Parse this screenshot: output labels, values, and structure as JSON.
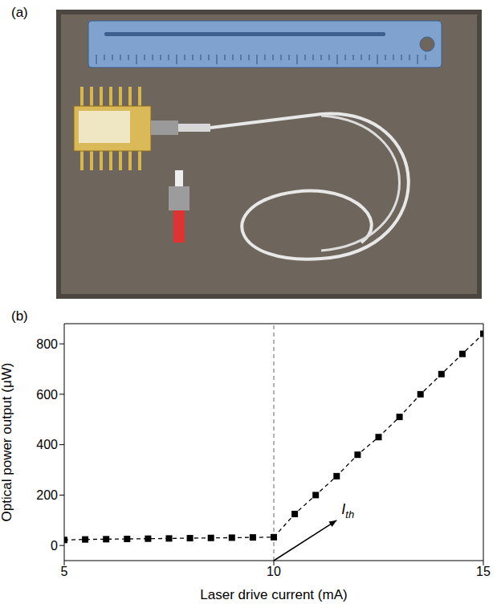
{
  "panel_labels": [
    "(a)",
    "(b)"
  ],
  "chart_data": {
    "type": "line",
    "x": [
      5,
      5.5,
      6,
      6.5,
      7,
      7.5,
      8,
      8.5,
      9,
      9.5,
      10,
      10.5,
      11,
      11.5,
      12,
      12.5,
      13,
      13.5,
      14,
      14.5,
      15
    ],
    "series": [
      {
        "name": "Optical power output",
        "color": "#000000",
        "marker": "square",
        "line_style": "dashed",
        "values": [
          22,
          24,
          25,
          26,
          27,
          28,
          29,
          30,
          31,
          32,
          33,
          125,
          200,
          275,
          360,
          430,
          510,
          600,
          680,
          760,
          840
        ]
      }
    ],
    "xlabel": "Laser drive current (mA)",
    "ylabel": "Optical power output (μW)",
    "xlim": [
      5,
      15
    ],
    "xticks": [
      5,
      10,
      15
    ],
    "ylim": [
      -60,
      880
    ],
    "yticks": [
      0,
      200,
      400,
      600,
      800
    ],
    "vline": {
      "x": 10,
      "color": "#999999",
      "line_style": "dashed"
    },
    "annotations": [
      {
        "text": "I",
        "subscript": "th",
        "x": 11.5,
        "y": 100
      }
    ],
    "grid": false
  }
}
